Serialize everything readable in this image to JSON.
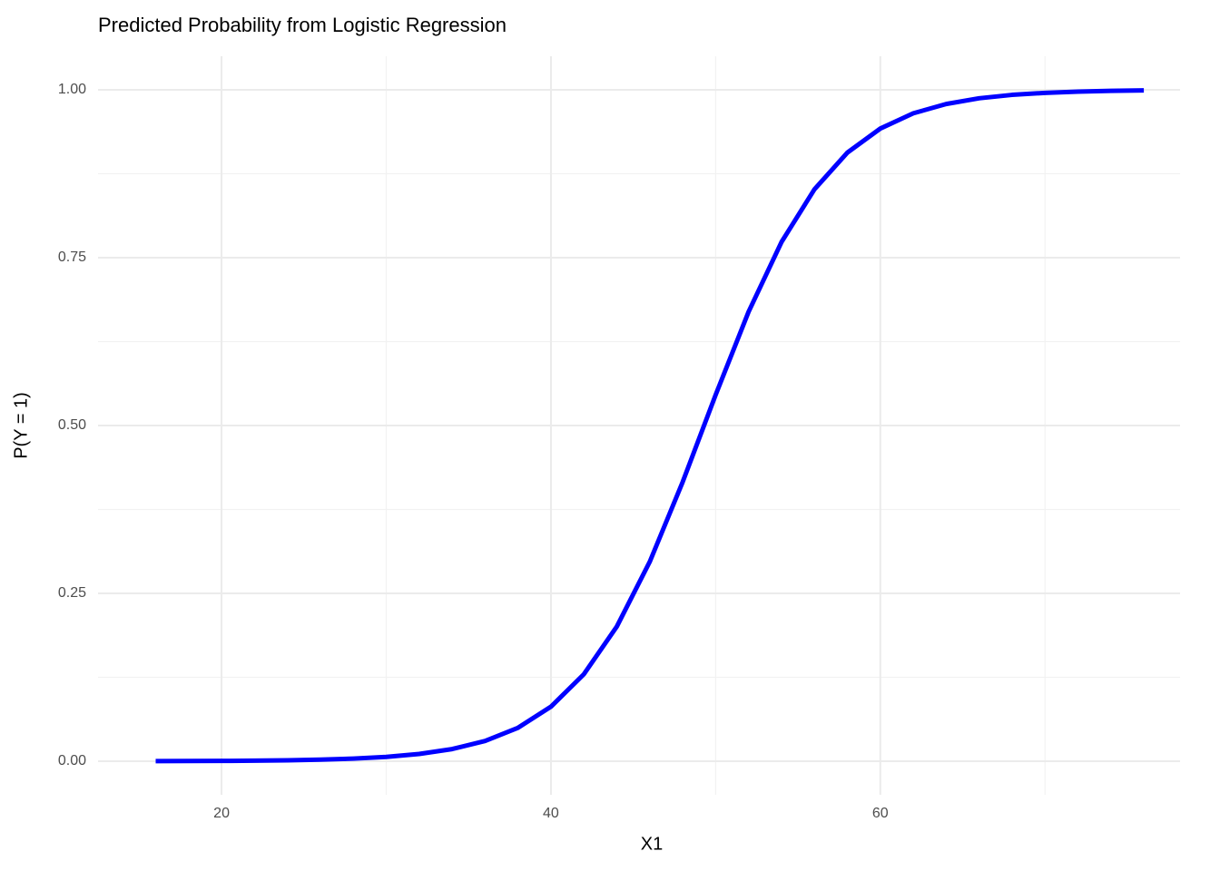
{
  "chart_data": {
    "type": "line",
    "title": "Predicted Probability from Logistic Regression",
    "x_label": "X1",
    "y_label": "P(Y = 1)",
    "x": [
      16,
      18,
      20,
      22,
      24,
      26,
      28,
      30,
      32,
      34,
      36,
      38,
      40,
      42,
      44,
      46,
      48,
      50,
      52,
      54,
      56,
      58,
      60,
      62,
      64,
      66,
      68,
      70,
      72,
      74,
      76
    ],
    "values": [
      0.000168,
      0.000283,
      0.000477,
      0.000804,
      0.00135,
      0.00228,
      0.00384,
      0.00645,
      0.0108,
      0.0181,
      0.0302,
      0.0498,
      0.0812,
      0.1296,
      0.2006,
      0.2971,
      0.416,
      0.5456,
      0.6693,
      0.7733,
      0.8518,
      0.9065,
      0.9423,
      0.965,
      0.9789,
      0.9874,
      0.9925,
      0.9955,
      0.9973,
      0.9984,
      0.9991
    ],
    "color": "#0000ff",
    "xlim": [
      12.5,
      78.2
    ],
    "ylim": [
      -0.05,
      1.05
    ],
    "xticks": [
      20,
      40,
      60
    ],
    "yticks": [
      {
        "value": 0,
        "label": "0.00"
      },
      {
        "value": 0.25,
        "label": "0.25"
      },
      {
        "value": 0.5,
        "label": "0.50"
      },
      {
        "value": 0.75,
        "label": "0.75"
      },
      {
        "value": 1,
        "label": "1.00"
      }
    ],
    "xminor": [
      30,
      50,
      70
    ],
    "yminor": [
      0.125,
      0.375,
      0.625,
      0.875
    ],
    "grid": true
  }
}
